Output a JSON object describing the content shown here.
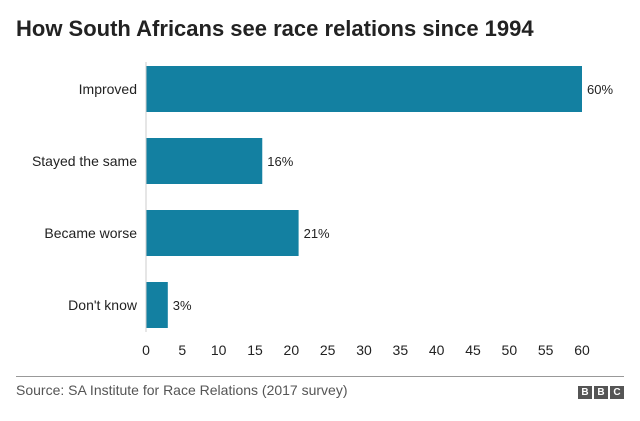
{
  "chart_data": {
    "type": "bar",
    "orientation": "horizontal",
    "title": "How South Africans see race relations since 1994",
    "categories": [
      "Improved",
      "Stayed the same",
      "Became worse",
      "Don't know"
    ],
    "values": [
      60,
      16,
      21,
      3
    ],
    "data_labels": [
      "60%",
      "16%",
      "21%",
      "3%"
    ],
    "xlim": [
      0,
      60
    ],
    "xticks": [
      0,
      5,
      10,
      15,
      20,
      25,
      30,
      35,
      40,
      45,
      50,
      55,
      60
    ],
    "xlabel": "",
    "ylabel": "",
    "grid": false,
    "bar_color": "#1380a1"
  },
  "source": "Source: SA Institute for Race Relations (2017 survey)",
  "logo": [
    "B",
    "B",
    "C"
  ]
}
